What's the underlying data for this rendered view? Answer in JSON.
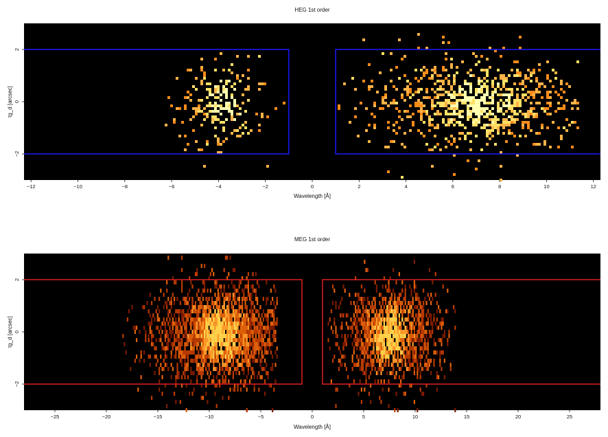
{
  "chart_data": [
    {
      "type": "heatmap",
      "title": "HEG 1st order",
      "xlabel": "Wavelength [Å]",
      "ylabel": "tg_d [arcsec]",
      "xlim": [
        -12.3,
        12.3
      ],
      "ylim": [
        -3.0,
        3.0
      ],
      "xticks": [
        -12,
        -10,
        -8,
        -6,
        -4,
        -2,
        0,
        2,
        4,
        6,
        8,
        10,
        12
      ],
      "yticks": [
        -2,
        0,
        2
      ],
      "background": "#000000",
      "box_color": "#1a1aff",
      "regions": [
        {
          "x": [
            -13,
            -1
          ],
          "y": [
            -2,
            2
          ]
        },
        {
          "x": [
            1,
            13
          ],
          "y": [
            -2,
            2
          ]
        }
      ],
      "clusters": [
        {
          "x_range": [
            -6.3,
            -1.8
          ],
          "x_peak": -3.8,
          "count": 230,
          "y_sigma": 0.75
        },
        {
          "x_range": [
            1.5,
            10.8
          ],
          "x_peak": 7.0,
          "count": 900,
          "y_sigma": 0.8
        }
      ],
      "colormap": [
        "#ff8c1a",
        "#ffb347",
        "#ffe066",
        "#ffffb0"
      ]
    },
    {
      "type": "heatmap",
      "title": "MEG 1st order",
      "xlabel": "Wavelength [Å]",
      "ylabel": "tg_d [arcsec]",
      "xlim": [
        -28.0,
        28.0
      ],
      "ylim": [
        -3.0,
        3.0
      ],
      "xticks": [
        -25,
        -20,
        -15,
        -10,
        -5,
        0,
        5,
        10,
        15,
        20,
        25
      ],
      "yticks": [
        -2,
        0,
        2
      ],
      "background": "#000000",
      "box_color": "#e02020",
      "regions": [
        {
          "x": [
            -29,
            -1
          ],
          "y": [
            -2,
            2
          ]
        },
        {
          "x": [
            1,
            29
          ],
          "y": [
            -2,
            2
          ]
        }
      ],
      "clusters": [
        {
          "x_range": [
            -18,
            -4
          ],
          "x_peak": -9.0,
          "count": 2200,
          "y_sigma": 0.85
        },
        {
          "x_range": [
            2,
            13.5
          ],
          "x_peak": 7.5,
          "count": 1400,
          "y_sigma": 0.85
        }
      ],
      "colormap": [
        "#7a1a00",
        "#b83a00",
        "#e0600a",
        "#ff9a2a",
        "#ffd24a"
      ]
    }
  ]
}
